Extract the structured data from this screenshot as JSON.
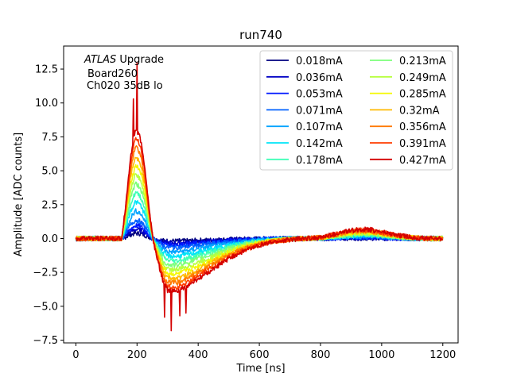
{
  "chart_data": {
    "type": "line",
    "title": "run740",
    "xlabel": "Time [ns]",
    "ylabel": "Amplitude [ADC counts]",
    "xlim": [
      -40,
      1250
    ],
    "ylim": [
      -7.7,
      14.2
    ],
    "xticks": [
      0,
      200,
      400,
      600,
      800,
      1000,
      1200
    ],
    "yticks": [
      -7.5,
      -5.0,
      -2.5,
      0.0,
      2.5,
      5.0,
      7.5,
      10.0,
      12.5
    ],
    "xtick_labels": [
      "0",
      "200",
      "400",
      "600",
      "800",
      "1000",
      "1200"
    ],
    "ytick_labels": [
      "−7.5",
      "−5.0",
      "−2.5",
      "0.0",
      "2.5",
      "5.0",
      "7.5",
      "10.0",
      "12.5"
    ],
    "annotation": {
      "italic": "ATLAS",
      "line1_rest": " Upgrade",
      "line2": "Board260",
      "line3": "Ch020 35dB lo"
    },
    "legend_position": "top-right",
    "legend_columns": 2,
    "pulse_shape": {
      "t": [
        0,
        150,
        165,
        180,
        195,
        210,
        225,
        240,
        255,
        270,
        285,
        300,
        330,
        360,
        400,
        450,
        500,
        550,
        600,
        650,
        700,
        750,
        800,
        850,
        880,
        920,
        960,
        1000,
        1050,
        1100,
        1150,
        1200
      ],
      "shape": [
        0,
        0,
        0.35,
        0.75,
        0.97,
        0.9,
        0.65,
        0.25,
        -0.05,
        -0.22,
        -0.38,
        -0.46,
        -0.47,
        -0.43,
        -0.36,
        -0.27,
        -0.18,
        -0.11,
        -0.06,
        -0.03,
        -0.01,
        0.0,
        0.01,
        0.04,
        0.06,
        0.08,
        0.08,
        0.06,
        0.03,
        0.01,
        0.0,
        0.0
      ]
    },
    "series": [
      {
        "name": "0.018mA",
        "current": 0.018,
        "peak": 0.4,
        "color": "#00007f"
      },
      {
        "name": "0.036mA",
        "current": 0.036,
        "peak": 0.7,
        "color": "#0000c4"
      },
      {
        "name": "0.053mA",
        "current": 0.053,
        "peak": 1.0,
        "color": "#0018ff"
      },
      {
        "name": "0.071mA",
        "current": 0.071,
        "peak": 1.4,
        "color": "#0060ff"
      },
      {
        "name": "0.107mA",
        "current": 0.107,
        "peak": 2.1,
        "color": "#00a4ff"
      },
      {
        "name": "0.142mA",
        "current": 0.142,
        "peak": 2.8,
        "color": "#00e4f8"
      },
      {
        "name": "0.178mA",
        "current": 0.178,
        "peak": 3.5,
        "color": "#3fffb7"
      },
      {
        "name": "0.213mA",
        "current": 0.213,
        "peak": 4.2,
        "color": "#7cff79"
      },
      {
        "name": "0.249mA",
        "current": 0.249,
        "peak": 4.9,
        "color": "#b7ff3f"
      },
      {
        "name": "0.285mA",
        "current": 0.285,
        "peak": 5.6,
        "color": "#f4f802"
      },
      {
        "name": "0.32mA",
        "current": 0.32,
        "peak": 6.3,
        "color": "#ffb900"
      },
      {
        "name": "0.356mA",
        "current": 0.356,
        "peak": 7.0,
        "color": "#ff7a00"
      },
      {
        "name": "0.391mA",
        "current": 0.391,
        "peak": 7.7,
        "color": "#ff3b00"
      },
      {
        "name": "0.427mA",
        "current": 0.427,
        "peak": 8.3,
        "color": "#d40000"
      }
    ]
  }
}
